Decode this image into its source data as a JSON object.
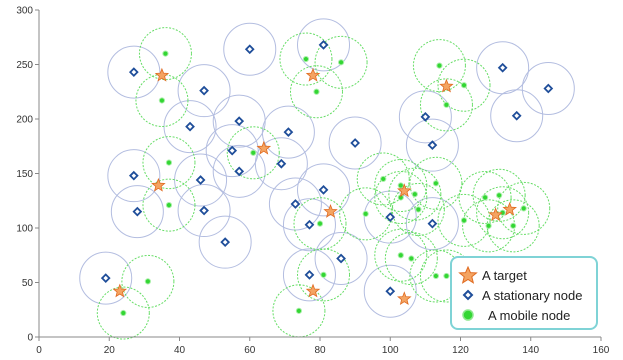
{
  "chart_data": {
    "type": "scatter",
    "title": "",
    "xlabel": "",
    "ylabel": "",
    "xlim": [
      0,
      160
    ],
    "ylim": [
      0,
      300
    ],
    "x_ticks": [
      "0",
      "20",
      "40",
      "60",
      "80",
      "100",
      "120",
      "140",
      "160"
    ],
    "y_ticks": [
      "0",
      "50",
      "100",
      "150",
      "200",
      "250",
      "300"
    ],
    "grid": false,
    "legend_position": "bottom-right",
    "colors": {
      "target": "#f08a3c",
      "stationary": "#1f4e9a",
      "mobile": "#33d633",
      "stationary_range": "#b3bde0",
      "mobile_range": "#66dd66",
      "legend_border": "#7fd3d6"
    },
    "series": [
      {
        "name": "A target",
        "marker": "star",
        "points": [
          [
            35,
            240
          ],
          [
            78,
            240
          ],
          [
            116,
            230
          ],
          [
            64,
            173
          ],
          [
            34,
            139
          ],
          [
            104,
            134
          ],
          [
            83,
            115
          ],
          [
            130,
            112
          ],
          [
            134,
            117
          ],
          [
            23,
            42
          ],
          [
            78,
            42
          ],
          [
            104,
            35
          ]
        ]
      },
      {
        "name": "A stationary node",
        "marker": "diamond",
        "points": [
          [
            27,
            243
          ],
          [
            60,
            264
          ],
          [
            81,
            268
          ],
          [
            132,
            247
          ],
          [
            145,
            228
          ],
          [
            47,
            226
          ],
          [
            110,
            202
          ],
          [
            136,
            203
          ],
          [
            43,
            193
          ],
          [
            57,
            198
          ],
          [
            71,
            188
          ],
          [
            90,
            178
          ],
          [
            112,
            176
          ],
          [
            55,
            171
          ],
          [
            69,
            159
          ],
          [
            27,
            148
          ],
          [
            46,
            144
          ],
          [
            57,
            152
          ],
          [
            81,
            135
          ],
          [
            28,
            115
          ],
          [
            47,
            116
          ],
          [
            73,
            122
          ],
          [
            100,
            110
          ],
          [
            77,
            103
          ],
          [
            112,
            104
          ],
          [
            53,
            87
          ],
          [
            19,
            54
          ],
          [
            77,
            57
          ],
          [
            86,
            72
          ],
          [
            100,
            42
          ]
        ]
      },
      {
        "name": "A mobile node",
        "marker": "dot",
        "points": [
          [
            36,
            260
          ],
          [
            35,
            217
          ],
          [
            76,
            255
          ],
          [
            86,
            252
          ],
          [
            79,
            225
          ],
          [
            114,
            249
          ],
          [
            116,
            213
          ],
          [
            121,
            231
          ],
          [
            61,
            169
          ],
          [
            37,
            160
          ],
          [
            37,
            121
          ],
          [
            98,
            145
          ],
          [
            103,
            139
          ],
          [
            107,
            131
          ],
          [
            108,
            117
          ],
          [
            103,
            128
          ],
          [
            113,
            141
          ],
          [
            80,
            104
          ],
          [
            93,
            113
          ],
          [
            131,
            130
          ],
          [
            127,
            128
          ],
          [
            132,
            114
          ],
          [
            138,
            118
          ],
          [
            121,
            107
          ],
          [
            128,
            102
          ],
          [
            135,
            102
          ],
          [
            106,
            72
          ],
          [
            113,
            56
          ],
          [
            103,
            75
          ],
          [
            116,
            56
          ],
          [
            81,
            57
          ],
          [
            74,
            24
          ],
          [
            24,
            22
          ],
          [
            31,
            51
          ]
        ]
      }
    ]
  }
}
